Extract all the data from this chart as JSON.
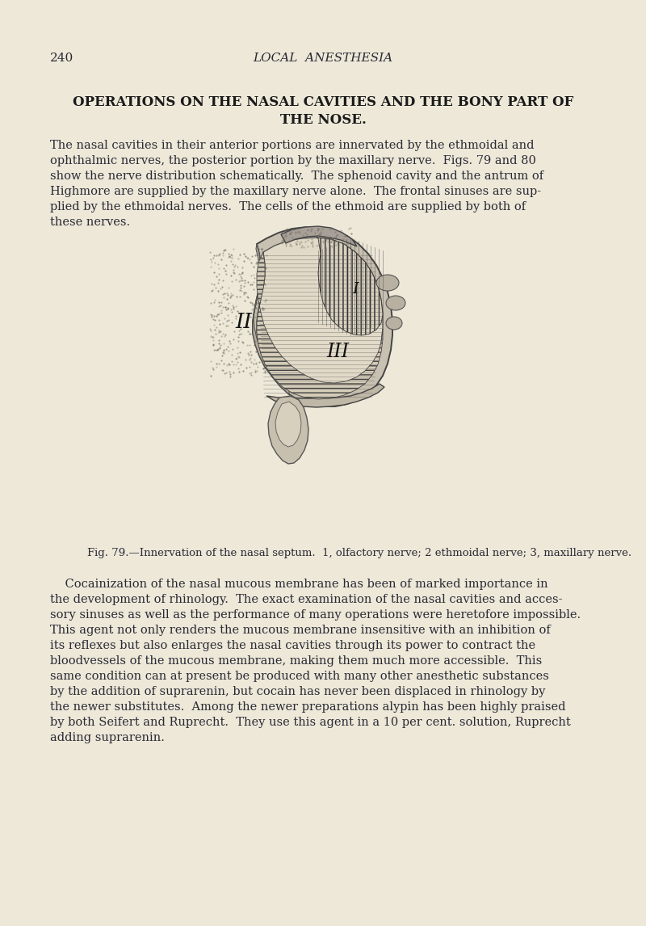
{
  "bg_color": "#ede8d8",
  "page_number": "240",
  "header_title": "LOCAL  ANESTHESIA",
  "section_heading_line1": "OPERATIONS ON THE NASAL CAVITIES AND THE BONY PART OF",
  "section_heading_line2": "THE NOSE.",
  "fig_caption": "Fig. 79.—Innervation of the nasal septum.  1, olfactory nerve; 2 ethmoidal nerve; 3, maxillary nerve.",
  "para1_lines": [
    "The nasal cavities in their anterior portions are innervated by the ethmoidal and",
    "ophthalmic nerves, the posterior portion by the maxillary nerve.  Figs. 79 and 80",
    "show the nerve distribution schematically.  The sphenoid cavity and the antrum of",
    "Highmore are supplied by the maxillary nerve alone.  The frontal sinuses are sup-",
    "plied by the ethmoidal nerves.  The cells of the ethmoid are supplied by both of",
    "these nerves."
  ],
  "para2_lines": [
    "    Cocainization of the nasal mucous membrane has been of marked importance in",
    "the development of rhinology.  The exact examination of the nasal cavities and acces-",
    "sory sinuses as well as the performance of many operations were heretofore impossible.",
    "This agent not only renders the mucous membrane insensitive with an inhibition of",
    "its reflexes but also enlarges the nasal cavities through its power to contract the",
    "bloodvessels of the mucous membrane, making them much more accessible.  This",
    "same condition can at present be produced with many other anesthetic substances",
    "by the addition of suprarenin, but cocain has never been displaced in rhinology by",
    "the newer substitutes.  Among the newer preparations alypin has been highly praised",
    "by both Seifert and Ruprecht.  They use this agent in a 10 per cent. solution, Ruprecht",
    "adding suprarenin."
  ],
  "text_color": "#2a2a35",
  "heading_color": "#1a1a1a"
}
